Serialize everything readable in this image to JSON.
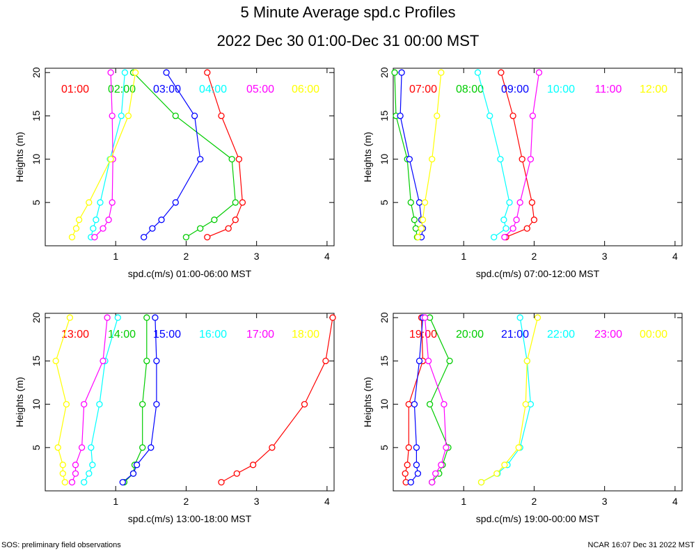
{
  "header": {
    "title": "5 Minute Average spd.c Profiles",
    "subtitle": "2022 Dec 30 01:00-Dec 31 00:00 MST"
  },
  "footer": {
    "left": "SOS: preliminary field observations",
    "right": "NCAR 16:07 Dec 31 2022 MST"
  },
  "chart_data": [
    {
      "type": "line",
      "title": "",
      "xlabel": "spd.c(m/s) 01:00-06:00 MST",
      "ylabel": "Heights (m)",
      "xlim": [
        0,
        4.1
      ],
      "ylim": [
        0,
        20.5
      ],
      "xticks": [
        "1",
        "2",
        "3",
        "4"
      ],
      "yticks": [
        "5",
        "10",
        "15",
        "20"
      ],
      "heights": [
        1,
        2,
        3,
        5,
        10,
        15,
        20
      ],
      "series": [
        {
          "name": "01:00",
          "color": "#ff0000",
          "values": [
            2.3,
            2.6,
            2.7,
            2.8,
            2.75,
            2.5,
            2.3
          ]
        },
        {
          "name": "02:00",
          "color": "#00cc00",
          "values": [
            2.0,
            2.2,
            2.4,
            2.7,
            2.65,
            1.85,
            1.25
          ]
        },
        {
          "name": "03:00",
          "color": "#0000ff",
          "values": [
            1.4,
            1.52,
            1.65,
            1.85,
            2.2,
            2.12,
            1.72
          ]
        },
        {
          "name": "04:00",
          "color": "#00ffff",
          "values": [
            0.65,
            0.68,
            0.72,
            0.78,
            0.92,
            1.08,
            1.13
          ]
        },
        {
          "name": "05:00",
          "color": "#ff00ff",
          "values": [
            0.7,
            0.82,
            0.9,
            0.95,
            0.96,
            0.95,
            0.93
          ]
        },
        {
          "name": "06:00",
          "color": "#ffff00",
          "values": [
            0.38,
            0.44,
            0.48,
            0.62,
            0.93,
            1.18,
            1.28
          ]
        }
      ]
    },
    {
      "type": "line",
      "title": "",
      "xlabel": "spd.c(m/s) 07:00-12:00 MST",
      "ylabel": "Heights (m)",
      "xlim": [
        0,
        4.1
      ],
      "ylim": [
        0,
        20.5
      ],
      "xticks": [
        "1",
        "2",
        "3",
        "4"
      ],
      "yticks": [
        "5",
        "10",
        "15",
        "20"
      ],
      "heights": [
        1,
        2,
        3,
        5,
        10,
        15,
        20
      ],
      "series": [
        {
          "name": "07:00",
          "color": "#ff0000",
          "values": [
            1.6,
            1.9,
            2.0,
            1.97,
            1.83,
            1.7,
            1.53
          ]
        },
        {
          "name": "08:00",
          "color": "#00cc00",
          "values": [
            0.34,
            0.32,
            0.3,
            0.25,
            0.2,
            0.04,
            0.02
          ]
        },
        {
          "name": "09:00",
          "color": "#0000ff",
          "values": [
            0.4,
            0.42,
            0.4,
            0.37,
            0.23,
            0.1,
            0.12
          ]
        },
        {
          "name": "10:00",
          "color": "#00ffff",
          "values": [
            1.43,
            1.6,
            1.57,
            1.65,
            1.52,
            1.37,
            1.2
          ]
        },
        {
          "name": "11:00",
          "color": "#ff00ff",
          "values": [
            1.58,
            1.7,
            1.75,
            1.8,
            1.95,
            1.98,
            2.07
          ]
        },
        {
          "name": "12:00",
          "color": "#ffff00",
          "values": [
            0.35,
            0.4,
            0.42,
            0.45,
            0.55,
            0.62,
            0.68
          ]
        }
      ]
    },
    {
      "type": "line",
      "title": "",
      "xlabel": "spd.c(m/s) 13:00-18:00 MST",
      "ylabel": "Heights (m)",
      "xlim": [
        0,
        4.1
      ],
      "ylim": [
        0,
        20.5
      ],
      "xticks": [
        "1",
        "2",
        "3",
        "4"
      ],
      "yticks": [
        "5",
        "10",
        "15",
        "20"
      ],
      "heights": [
        1,
        2,
        3,
        5,
        10,
        15,
        20
      ],
      "series": [
        {
          "name": "13:00",
          "color": "#ff0000",
          "values": [
            2.5,
            2.72,
            2.95,
            3.22,
            3.68,
            3.98,
            4.08
          ]
        },
        {
          "name": "14:00",
          "color": "#00cc00",
          "values": [
            1.12,
            1.25,
            1.27,
            1.38,
            1.38,
            1.44,
            1.44
          ]
        },
        {
          "name": "15:00",
          "color": "#0000ff",
          "values": [
            1.1,
            1.25,
            1.3,
            1.5,
            1.58,
            1.58,
            1.56
          ]
        },
        {
          "name": "16:00",
          "color": "#00ffff",
          "values": [
            0.55,
            0.62,
            0.67,
            0.65,
            0.77,
            0.85,
            1.03
          ]
        },
        {
          "name": "17:00",
          "color": "#ff00ff",
          "values": [
            0.38,
            0.43,
            0.43,
            0.52,
            0.55,
            0.82,
            0.88
          ]
        },
        {
          "name": "18:00",
          "color": "#ffff00",
          "values": [
            0.28,
            0.25,
            0.25,
            0.18,
            0.3,
            0.15,
            0.35
          ]
        }
      ]
    },
    {
      "type": "line",
      "title": "",
      "xlabel": "spd.c(m/s) 19:00-00:00 MST",
      "ylabel": "Heights (m)",
      "xlim": [
        0,
        4.1
      ],
      "ylim": [
        0,
        20.5
      ],
      "xticks": [
        "1",
        "2",
        "3",
        "4"
      ],
      "yticks": [
        "5",
        "10",
        "15",
        "20"
      ],
      "heights": [
        1,
        2,
        3,
        5,
        10,
        15,
        20
      ],
      "series": [
        {
          "name": "19:00",
          "color": "#ff0000",
          "values": [
            0.18,
            0.17,
            0.2,
            0.22,
            0.22,
            0.42,
            0.4
          ]
        },
        {
          "name": "20:00",
          "color": "#00cc00",
          "values": [
            0.55,
            0.65,
            0.7,
            0.78,
            0.52,
            0.8,
            0.52
          ]
        },
        {
          "name": "21:00",
          "color": "#0000ff",
          "values": [
            0.25,
            0.35,
            0.33,
            0.33,
            0.3,
            0.37,
            0.42
          ]
        },
        {
          "name": "22:00",
          "color": "#00ffff",
          "values": [
            1.25,
            1.48,
            1.62,
            1.8,
            1.95,
            1.9,
            1.8
          ]
        },
        {
          "name": "23:00",
          "color": "#ff00ff",
          "values": [
            0.55,
            0.6,
            0.68,
            0.75,
            0.72,
            0.5,
            0.45
          ]
        },
        {
          "name": "00:00",
          "color": "#ffff00",
          "values": [
            1.25,
            1.47,
            1.58,
            1.78,
            1.88,
            1.9,
            2.05
          ]
        }
      ]
    }
  ]
}
